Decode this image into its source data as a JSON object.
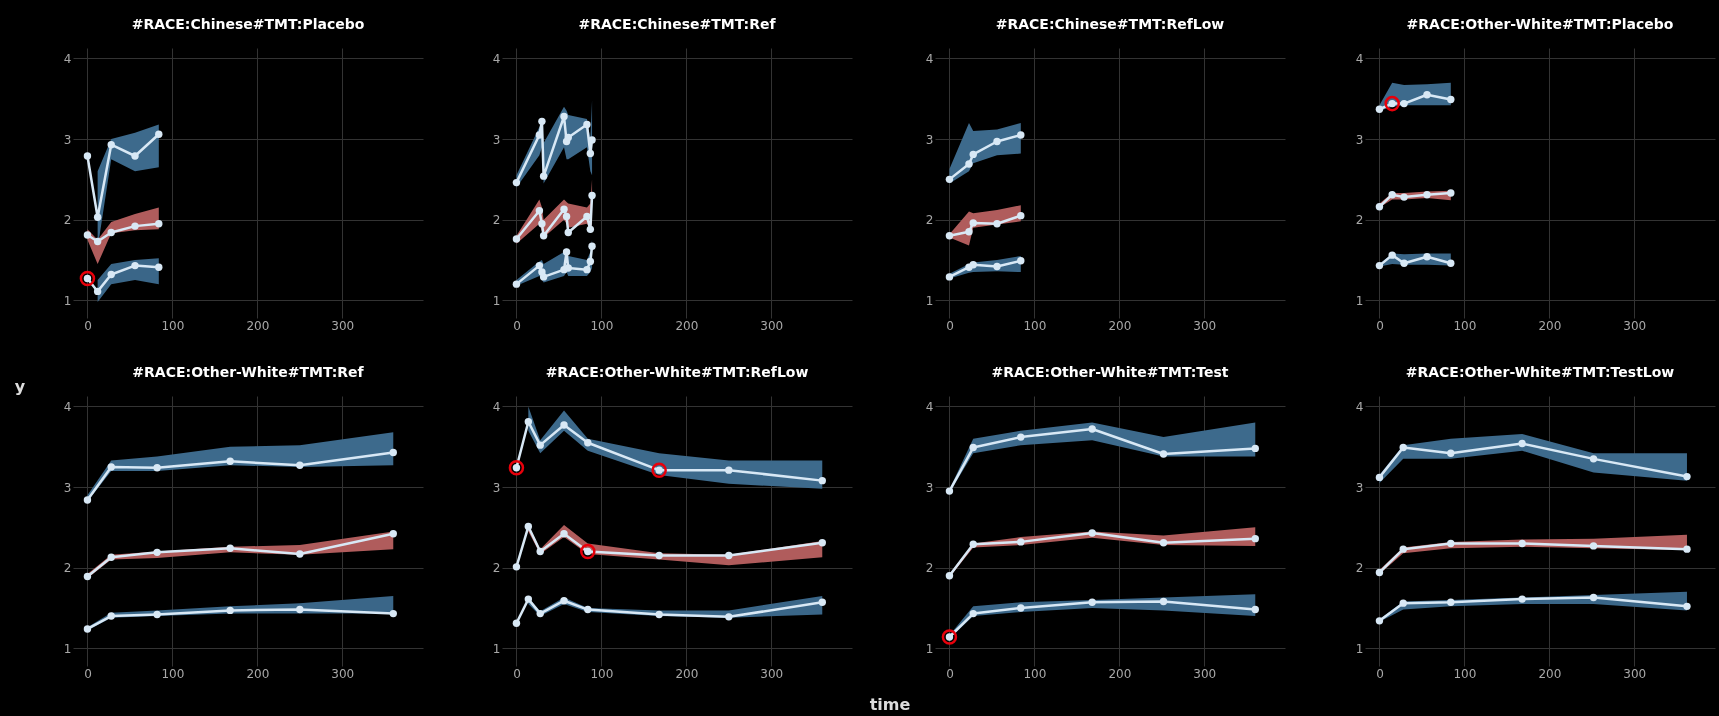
{
  "chart_data": [
    {
      "type": "line",
      "title": "#RACE:Chinese#TMT:Placebo",
      "x": [
        0,
        12,
        28,
        56,
        84
      ],
      "xlim": [
        -17,
        395
      ],
      "ylim": [
        0.78,
        4.13
      ],
      "xticks": [
        0,
        100,
        200,
        300
      ],
      "yticks": [
        1,
        2,
        3,
        4
      ],
      "grid": true,
      "marker": "circle",
      "series": [
        {
          "color": "#d8e8f5",
          "values": [
            2.79,
            2.03,
            2.93,
            2.79,
            3.06
          ],
          "lower": [
            null,
            1.65,
            2.75,
            2.6,
            2.65
          ],
          "upper": [
            null,
            2.6,
            3.0,
            3.08,
            3.18
          ]
        },
        {
          "color": "#d8e8f5",
          "values": [
            1.81,
            1.73,
            1.84,
            1.92,
            1.95
          ],
          "lower": [
            1.75,
            1.45,
            1.83,
            1.87,
            1.88
          ],
          "upper": [
            1.88,
            1.75,
            1.97,
            2.07,
            2.15
          ]
        },
        {
          "color": "#d8e8f5",
          "values": [
            1.27,
            1.11,
            1.32,
            1.43,
            1.41
          ],
          "lower": [
            null,
            0.98,
            1.2,
            1.25,
            1.2
          ],
          "upper": [
            null,
            1.25,
            1.45,
            1.5,
            1.52
          ]
        },
        {
          "type": "scatter",
          "color": "#e8000b",
          "x": [
            0
          ],
          "values": [
            1.27
          ]
        }
      ]
    },
    {
      "type": "line",
      "title": "#RACE:Chinese#TMT:Ref",
      "x": [
        0,
        27,
        30,
        32,
        56,
        59,
        61,
        83,
        87,
        89
      ],
      "xlim": [
        -17,
        395
      ],
      "ylim": [
        0.78,
        4.13
      ],
      "xticks": [
        0,
        100,
        200,
        300
      ],
      "yticks": [
        1,
        2,
        3,
        4
      ],
      "grid": true,
      "marker": "circle",
      "series": [
        {
          "color": "#d8e8f5",
          "values": [
            2.46,
            3.05,
            3.22,
            2.54,
            3.28,
            2.97,
            3.02,
            3.18,
            2.82,
            2.99
          ],
          "lower": [
            2.4,
            2.8,
            2.9,
            2.45,
            2.9,
            2.75,
            2.75,
            2.9,
            2.6,
            2.55
          ],
          "upper": [
            2.55,
            3.15,
            3.2,
            2.95,
            3.4,
            3.35,
            3.3,
            3.25,
            3.0,
            3.48
          ]
        },
        {
          "color": "#d8e8f5",
          "values": [
            1.76,
            2.11,
            1.95,
            1.8,
            2.13,
            2.04,
            1.84,
            2.04,
            1.88,
            2.3
          ],
          "lower": [
            1.7,
            1.95,
            1.85,
            1.78,
            2.0,
            1.95,
            1.9,
            1.95,
            1.88,
            1.95
          ],
          "upper": [
            1.8,
            2.25,
            2.15,
            2.0,
            2.25,
            2.22,
            2.2,
            2.15,
            2.2,
            2.5
          ]
        },
        {
          "color": "#d8e8f5",
          "values": [
            1.2,
            1.43,
            1.35,
            1.29,
            1.38,
            1.6,
            1.4,
            1.38,
            1.48,
            1.67
          ],
          "lower": [
            1.18,
            1.3,
            1.25,
            1.22,
            1.3,
            1.35,
            1.3,
            1.3,
            1.35,
            1.4
          ],
          "upper": [
            1.25,
            1.48,
            1.5,
            1.45,
            1.6,
            1.65,
            1.55,
            1.5,
            1.6,
            1.75
          ]
        }
      ]
    },
    {
      "type": "line",
      "title": "#RACE:Chinese#TMT:RefLow",
      "x": [
        0,
        23,
        28,
        56,
        84
      ],
      "xlim": [
        -17,
        395
      ],
      "ylim": [
        0.78,
        4.13
      ],
      "xticks": [
        0,
        100,
        200,
        300
      ],
      "yticks": [
        1,
        2,
        3,
        4
      ],
      "grid": true,
      "marker": "circle",
      "series": [
        {
          "color": "#d8e8f5",
          "values": [
            2.5,
            2.69,
            2.81,
            2.97,
            3.05
          ],
          "lower": [
            2.45,
            2.6,
            2.7,
            2.8,
            2.82
          ],
          "upper": [
            2.63,
            3.2,
            3.1,
            3.12,
            3.2
          ]
        },
        {
          "color": "#d8e8f5",
          "values": [
            1.8,
            1.85,
            1.96,
            1.95,
            2.05
          ],
          "lower": [
            1.78,
            1.68,
            1.9,
            1.94,
            1.98
          ],
          "upper": [
            1.82,
            2.1,
            2.08,
            2.12,
            2.18
          ]
        },
        {
          "color": "#d8e8f5",
          "values": [
            1.29,
            1.41,
            1.44,
            1.42,
            1.49
          ],
          "lower": [
            1.27,
            1.34,
            1.35,
            1.36,
            1.35
          ],
          "upper": [
            1.33,
            1.45,
            1.47,
            1.5,
            1.55
          ]
        }
      ]
    },
    {
      "type": "line",
      "title": "#RACE:Other-White#TMT:Placebo",
      "x": [
        0,
        15,
        29,
        56,
        84
      ],
      "xlim": [
        -17,
        395
      ],
      "ylim": [
        0.78,
        4.13
      ],
      "xticks": [
        0,
        100,
        200,
        300
      ],
      "yticks": [
        1,
        2,
        3,
        4
      ],
      "grid": true,
      "marker": "circle",
      "series": [
        {
          "color": "#d8e8f5",
          "values": [
            3.37,
            3.44,
            3.44,
            3.55,
            3.49
          ],
          "lower": [
            3.35,
            3.4,
            3.42,
            3.42,
            3.42
          ],
          "upper": [
            3.42,
            3.7,
            3.67,
            3.68,
            3.7
          ]
        },
        {
          "color": "#d8e8f5",
          "values": [
            2.16,
            2.31,
            2.28,
            2.31,
            2.33
          ],
          "lower": [
            2.15,
            2.25,
            2.25,
            2.27,
            2.24
          ],
          "upper": [
            2.2,
            2.33,
            2.33,
            2.35,
            2.36
          ]
        },
        {
          "color": "#d8e8f5",
          "values": [
            1.43,
            1.56,
            1.46,
            1.54,
            1.46
          ],
          "lower": [
            1.42,
            1.45,
            1.44,
            1.44,
            1.43
          ],
          "upper": [
            1.45,
            1.58,
            1.57,
            1.58,
            1.58
          ]
        },
        {
          "type": "scatter",
          "color": "#e8000b",
          "x": [
            15
          ],
          "values": [
            3.44
          ]
        }
      ]
    },
    {
      "type": "line",
      "title": "#RACE:Other-White#TMT:Ref",
      "ylabel": "y",
      "x": [
        0,
        28,
        82,
        168,
        250,
        360
      ],
      "xlim": [
        -17,
        395
      ],
      "ylim": [
        0.78,
        4.13
      ],
      "xticks": [
        0,
        100,
        200,
        300
      ],
      "yticks": [
        1,
        2,
        3,
        4
      ],
      "grid": true,
      "marker": "circle",
      "series": [
        {
          "color": "#d8e8f5",
          "values": [
            2.84,
            3.25,
            3.24,
            3.32,
            3.27,
            3.43
          ],
          "lower": [
            2.82,
            3.2,
            3.2,
            3.27,
            3.25,
            3.27
          ],
          "upper": [
            2.9,
            3.33,
            3.38,
            3.5,
            3.52,
            3.68
          ]
        },
        {
          "color": "#d8e8f5",
          "values": [
            1.89,
            2.13,
            2.19,
            2.24,
            2.17,
            2.42
          ],
          "lower": [
            1.87,
            2.1,
            2.12,
            2.19,
            2.16,
            2.23
          ],
          "upper": [
            1.92,
            2.16,
            2.2,
            2.26,
            2.28,
            2.45
          ]
        },
        {
          "color": "#d8e8f5",
          "values": [
            1.24,
            1.4,
            1.42,
            1.47,
            1.48,
            1.43
          ],
          "lower": [
            1.22,
            1.38,
            1.4,
            1.43,
            1.43,
            1.43
          ],
          "upper": [
            1.26,
            1.44,
            1.47,
            1.52,
            1.56,
            1.65
          ]
        }
      ]
    },
    {
      "type": "line",
      "title": "#RACE:Other-White#TMT:RefLow",
      "xlabel": "time",
      "x": [
        0,
        14,
        28,
        56,
        84,
        168,
        250,
        360
      ],
      "xlim": [
        -17,
        395
      ],
      "ylim": [
        0.78,
        4.13
      ],
      "xticks": [
        0,
        100,
        200,
        300
      ],
      "yticks": [
        1,
        2,
        3,
        4
      ],
      "grid": true,
      "marker": "circle",
      "series": [
        {
          "color": "#d8e8f5",
          "values": [
            3.24,
            3.81,
            3.52,
            3.77,
            3.55,
            3.21,
            3.21,
            3.08
          ],
          "lower": [
            null,
            3.7,
            3.42,
            3.7,
            3.45,
            3.15,
            3.04,
            2.98
          ],
          "upper": [
            null,
            4.0,
            3.58,
            3.95,
            3.6,
            3.42,
            3.33,
            3.33
          ]
        },
        {
          "color": "#d8e8f5",
          "values": [
            2.01,
            2.51,
            2.2,
            2.42,
            2.2,
            2.15,
            2.15,
            2.31
          ],
          "lower": [
            null,
            2.45,
            2.17,
            2.38,
            2.17,
            2.1,
            2.03,
            2.13
          ],
          "upper": [
            null,
            2.53,
            2.23,
            2.53,
            2.3,
            2.18,
            2.16,
            2.33
          ]
        },
        {
          "color": "#d8e8f5",
          "values": [
            1.31,
            1.61,
            1.43,
            1.59,
            1.48,
            1.42,
            1.39,
            1.57
          ],
          "lower": [
            null,
            1.55,
            1.4,
            1.55,
            1.45,
            1.4,
            1.38,
            1.42
          ],
          "upper": [
            null,
            1.63,
            1.46,
            1.63,
            1.5,
            1.47,
            1.47,
            1.65
          ]
        },
        {
          "type": "scatter",
          "color": "#e8000b",
          "x": [
            0,
            84,
            168
          ],
          "values": [
            3.24,
            2.2,
            3.21
          ]
        }
      ]
    },
    {
      "type": "line",
      "title": "#RACE:Other-White#TMT:Test",
      "x": [
        0,
        28,
        84,
        168,
        252,
        360
      ],
      "xlim": [
        -17,
        395
      ],
      "ylim": [
        0.78,
        4.13
      ],
      "xticks": [
        0,
        100,
        200,
        300
      ],
      "yticks": [
        1,
        2,
        3,
        4
      ],
      "grid": true,
      "marker": "circle",
      "series": [
        {
          "color": "#d8e8f5",
          "values": [
            2.95,
            3.49,
            3.62,
            3.72,
            3.41,
            3.48
          ],
          "lower": [
            2.93,
            3.42,
            3.52,
            3.58,
            3.38,
            3.38
          ],
          "upper": [
            2.97,
            3.6,
            3.7,
            3.8,
            3.62,
            3.8
          ]
        },
        {
          "color": "#d8e8f5",
          "values": [
            1.9,
            2.29,
            2.32,
            2.43,
            2.31,
            2.36
          ],
          "lower": [
            1.88,
            2.25,
            2.28,
            2.37,
            2.28,
            2.27
          ],
          "upper": [
            1.92,
            2.3,
            2.38,
            2.45,
            2.4,
            2.5
          ]
        },
        {
          "color": "#d8e8f5",
          "values": [
            1.14,
            1.43,
            1.5,
            1.57,
            1.58,
            1.48
          ],
          "lower": [
            1.12,
            1.4,
            1.45,
            1.5,
            1.47,
            1.4
          ],
          "upper": [
            1.16,
            1.52,
            1.57,
            1.6,
            1.63,
            1.67
          ]
        },
        {
          "type": "scatter",
          "color": "#e8000b",
          "x": [
            0
          ],
          "values": [
            1.14
          ]
        }
      ]
    },
    {
      "type": "line",
      "title": "#RACE:Other-White#TMT:TestLow",
      "x": [
        0,
        28,
        84,
        168,
        252,
        362
      ],
      "xlim": [
        -17,
        395
      ],
      "ylim": [
        0.78,
        4.13
      ],
      "xticks": [
        0,
        100,
        200,
        300
      ],
      "yticks": [
        1,
        2,
        3,
        4
      ],
      "grid": true,
      "marker": "circle",
      "series": [
        {
          "color": "#d8e8f5",
          "values": [
            3.12,
            3.49,
            3.42,
            3.54,
            3.35,
            3.13
          ],
          "lower": [
            3.05,
            3.35,
            3.35,
            3.45,
            3.18,
            3.08
          ],
          "upper": [
            3.15,
            3.52,
            3.6,
            3.66,
            3.42,
            3.42
          ]
        },
        {
          "color": "#d8e8f5",
          "values": [
            1.94,
            2.23,
            2.3,
            2.3,
            2.27,
            2.23
          ],
          "lower": [
            1.92,
            2.18,
            2.24,
            2.26,
            2.24,
            2.22
          ],
          "upper": [
            1.97,
            2.25,
            2.32,
            2.35,
            2.36,
            2.41
          ]
        },
        {
          "color": "#d8e8f5",
          "values": [
            1.34,
            1.56,
            1.57,
            1.61,
            1.63,
            1.52
          ],
          "lower": [
            1.33,
            1.48,
            1.52,
            1.55,
            1.55,
            1.47
          ],
          "upper": [
            1.36,
            1.58,
            1.6,
            1.63,
            1.66,
            1.7
          ]
        }
      ]
    }
  ]
}
